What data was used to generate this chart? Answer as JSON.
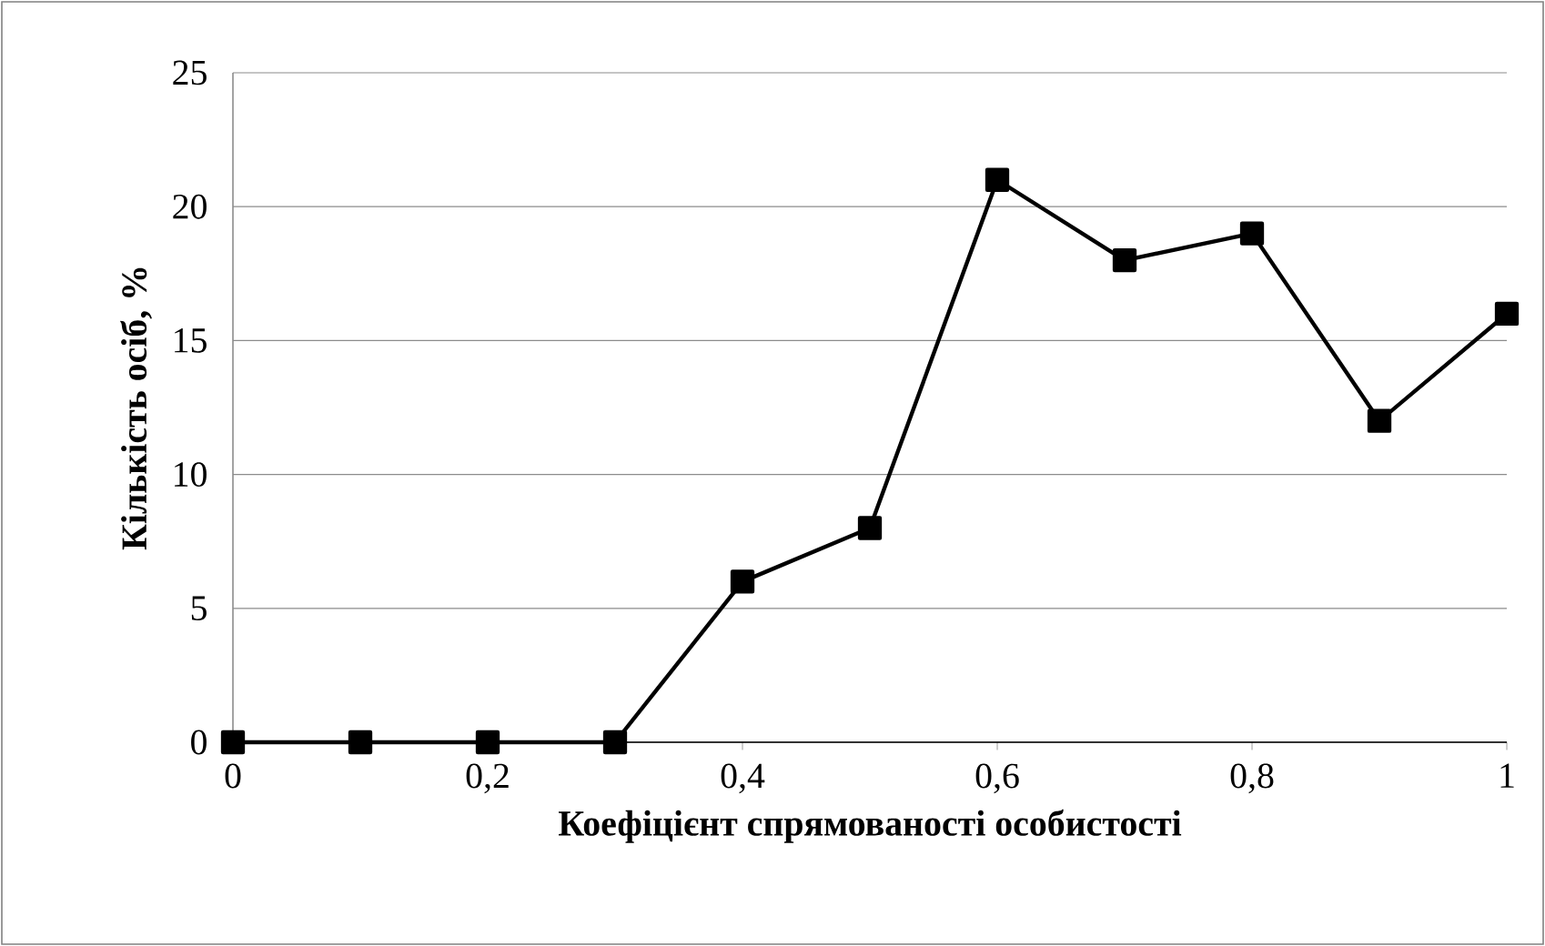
{
  "chart_data": {
    "type": "line",
    "xlabel": "Коефіцієнт спрямованості особистості",
    "ylabel": "Кількість осіб, %",
    "x": [
      0,
      0.1,
      0.2,
      0.3,
      0.4,
      0.5,
      0.6,
      0.7,
      0.8,
      0.9,
      1
    ],
    "series": [
      {
        "color": "#000000",
        "values": [
          0,
          0,
          0,
          0,
          6,
          8,
          21,
          18,
          19,
          12,
          16
        ]
      }
    ],
    "xlim": [
      0,
      1
    ],
    "ylim": [
      0,
      25
    ],
    "xticks": [
      0,
      {
        "value": 0.2,
        "label": "0,2"
      },
      {
        "value": 0.4,
        "label": "0,4"
      },
      {
        "value": 0.6,
        "label": "0,6"
      },
      {
        "value": 0.8,
        "label": "0,8"
      },
      1
    ],
    "yticks": [
      0,
      5,
      10,
      15,
      20,
      25
    ],
    "grid": "y",
    "marker": "square",
    "line_style": "solid"
  }
}
